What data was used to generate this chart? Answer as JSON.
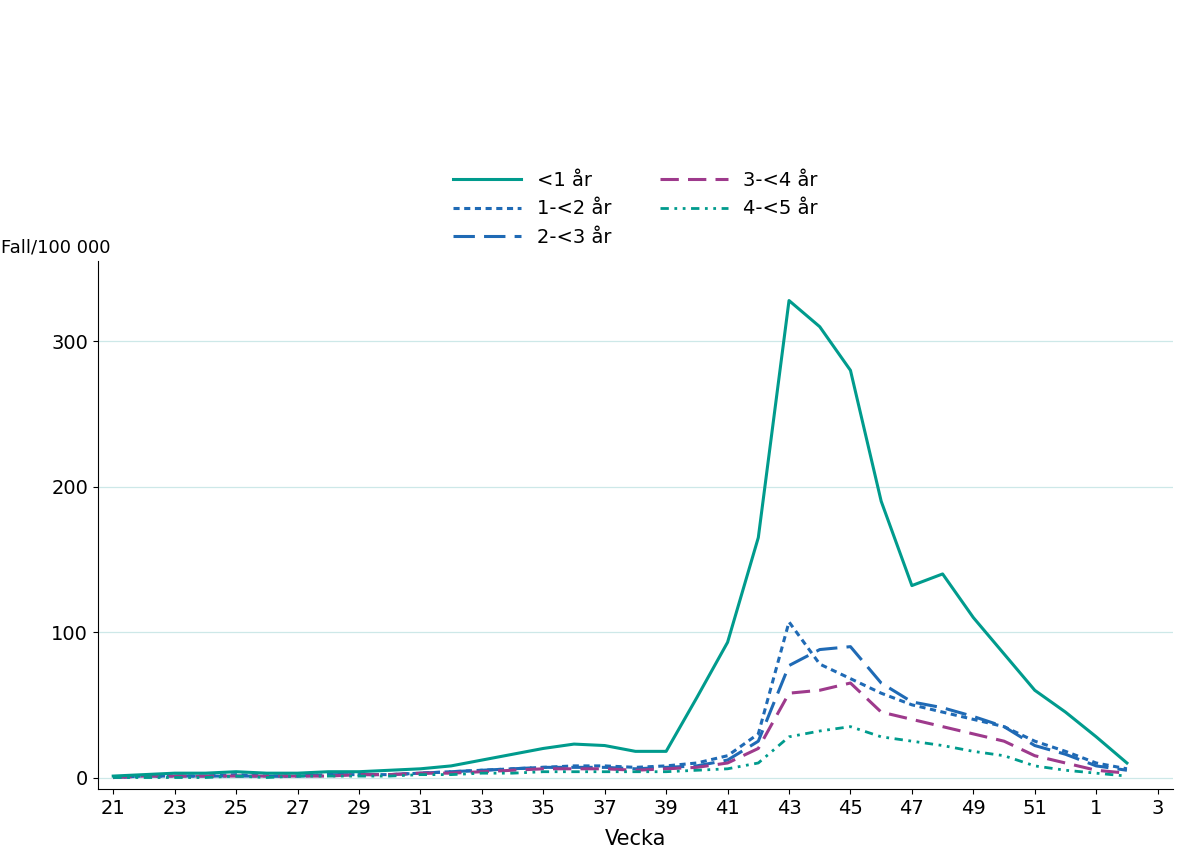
{
  "xlabel": "Vecka",
  "ylabel": "Fall/100 000",
  "xtick_labels": [
    "21",
    "23",
    "25",
    "27",
    "29",
    "31",
    "33",
    "35",
    "37",
    "39",
    "41",
    "43",
    "45",
    "47",
    "49",
    "51",
    "1",
    "3"
  ],
  "ytick_labels": [
    0,
    100,
    200,
    300
  ],
  "ylim": [
    -8,
    355
  ],
  "weeks": [
    21,
    22,
    23,
    24,
    25,
    26,
    27,
    28,
    29,
    30,
    31,
    32,
    33,
    34,
    35,
    36,
    37,
    38,
    39,
    40,
    41,
    42,
    43,
    44,
    45,
    46,
    47,
    48,
    49,
    50,
    51,
    52,
    53,
    54
  ],
  "series": {
    "<1 år": {
      "color": "#009B8D",
      "linestyle": "solid",
      "linewidth": 2.2,
      "values": [
        1,
        2,
        3,
        3,
        4,
        3,
        3,
        4,
        4,
        5,
        6,
        8,
        12,
        16,
        20,
        23,
        22,
        18,
        18,
        55,
        93,
        165,
        328,
        310,
        280,
        190,
        132,
        140,
        110,
        85,
        60,
        45,
        28,
        10
      ]
    },
    "1-<2 år": {
      "color": "#1f6ab5",
      "linestyle": "dotted",
      "linewidth": 2.2,
      "values": [
        0,
        1,
        1,
        1,
        2,
        1,
        1,
        2,
        2,
        2,
        3,
        4,
        5,
        6,
        7,
        8,
        8,
        7,
        8,
        10,
        15,
        30,
        107,
        78,
        68,
        58,
        50,
        45,
        40,
        35,
        25,
        18,
        10,
        6
      ]
    },
    "2-<3 år": {
      "color": "#1f6ab5",
      "linestyle": "dashed",
      "linewidth": 2.2,
      "values": [
        0,
        1,
        1,
        1,
        1,
        1,
        1,
        2,
        2,
        2,
        3,
        4,
        5,
        6,
        7,
        7,
        7,
        6,
        7,
        8,
        12,
        25,
        77,
        88,
        90,
        65,
        52,
        48,
        42,
        35,
        22,
        16,
        8,
        5
      ]
    },
    "3-<4 år": {
      "color": "#9e3a8c",
      "linestyle": "dashed",
      "linewidth": 2.2,
      "values": [
        0,
        1,
        1,
        1,
        1,
        1,
        1,
        1,
        2,
        2,
        3,
        3,
        4,
        5,
        6,
        6,
        6,
        5,
        6,
        7,
        10,
        20,
        58,
        60,
        65,
        45,
        40,
        35,
        30,
        25,
        15,
        10,
        5,
        3
      ]
    },
    "4-<5 år": {
      "color": "#009B8D",
      "linestyle": "dashdotdot",
      "linewidth": 2.0,
      "values": [
        0,
        0,
        0,
        0,
        1,
        0,
        1,
        1,
        1,
        1,
        2,
        2,
        3,
        3,
        4,
        4,
        4,
        4,
        4,
        5,
        6,
        10,
        28,
        32,
        35,
        28,
        25,
        22,
        18,
        15,
        8,
        5,
        3,
        1
      ]
    }
  },
  "legend_order": [
    "<1 år",
    "1-<2 år",
    "2-<3 år",
    "3-<4 år",
    "4-<5 år"
  ],
  "background_color": "#ffffff",
  "grid_color": "#cde8e8"
}
